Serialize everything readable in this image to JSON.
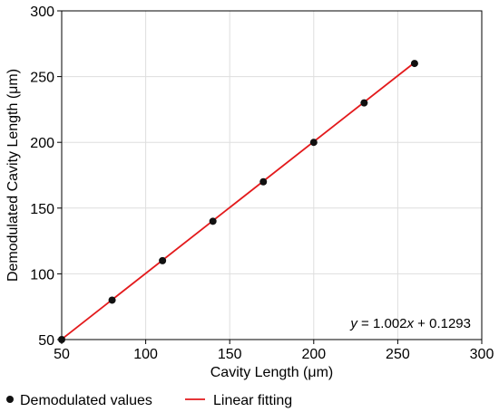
{
  "chart_data": {
    "type": "scatter",
    "xlabel": "Cavity Length (μm)",
    "ylabel": "Demodulated Cavity Length (μm)",
    "xlim": [
      50,
      300
    ],
    "ylim": [
      50,
      300
    ],
    "x_ticks": [
      50,
      100,
      150,
      200,
      250,
      300
    ],
    "y_ticks": [
      50,
      100,
      150,
      200,
      250,
      300
    ],
    "grid": true,
    "legend_position": "bottom",
    "series": [
      {
        "name": "Demodulated values",
        "type": "scatter",
        "color": "#111111",
        "x": [
          50,
          80,
          110,
          140,
          170,
          200,
          230,
          260
        ],
        "y": [
          50,
          80,
          110,
          140,
          170,
          200,
          230,
          260
        ]
      },
      {
        "name": "Linear fitting",
        "type": "line",
        "color": "#e31a1c",
        "slope": 1.002,
        "intercept": 0.1293,
        "x_range": [
          50,
          260
        ]
      }
    ],
    "annotation": {
      "text_y": "y",
      "text_eq": " = 1.002",
      "text_x": "x",
      "text_rest": " + 0.1293"
    }
  }
}
